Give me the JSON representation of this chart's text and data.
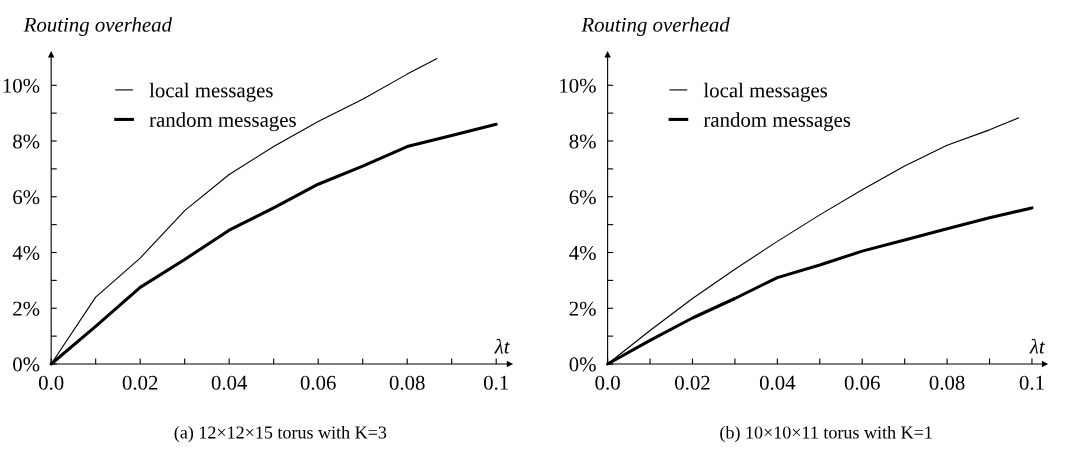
{
  "chart_data": [
    {
      "type": "line",
      "title": "(a) 12×12×15 torus with K=3",
      "ylabel": "Routing overhead",
      "xlabel": "λt",
      "legend": "top left",
      "grid": false,
      "xlim": [
        0,
        0.103
      ],
      "ylim": [
        0,
        11.1
      ],
      "xticks": [
        {
          "value": 0,
          "label": "0.0"
        },
        {
          "value": 0.01,
          "label": null
        },
        0.02,
        {
          "value": 0.03,
          "label": null
        },
        0.04,
        {
          "value": 0.05,
          "label": null
        },
        0.06,
        {
          "value": 0.07,
          "label": null
        },
        0.08,
        {
          "value": 0.09,
          "label": null
        },
        0.1
      ],
      "yticks": [
        {
          "value": 0,
          "label": "0%"
        },
        {
          "value": 1,
          "label": null
        },
        {
          "value": 2,
          "label": "2%"
        },
        {
          "value": 3,
          "label": null
        },
        {
          "value": 4,
          "label": "4%"
        },
        {
          "value": 5,
          "label": null
        },
        {
          "value": 6,
          "label": "6%"
        },
        {
          "value": 7,
          "label": null
        },
        {
          "value": 8,
          "label": "8%"
        },
        {
          "value": 9,
          "label": null
        },
        {
          "value": 10,
          "label": "10%"
        }
      ],
      "series": [
        {
          "name": "local messages",
          "color": "#000000",
          "x": [
            0,
            0.01,
            0.02,
            0.03,
            0.04,
            0.05,
            0.06,
            0.07,
            0.08,
            0.0867
          ],
          "values": [
            0,
            2.4,
            3.8,
            5.5,
            6.8,
            7.8,
            8.7,
            9.5,
            10.4,
            10.96
          ]
        },
        {
          "name": "random messages",
          "color": "#000000",
          "x": [
            0,
            0.01,
            0.02,
            0.03,
            0.04,
            0.05,
            0.06,
            0.07,
            0.08,
            0.09,
            0.1
          ],
          "values": [
            0,
            1.35,
            2.75,
            3.75,
            4.8,
            5.6,
            6.45,
            7.1,
            7.8,
            8.2,
            8.6
          ]
        }
      ]
    },
    {
      "type": "line",
      "title": "(b) 10×10×11 torus with K=1",
      "ylabel": "Routing overhead",
      "xlabel": "λt",
      "legend": "top left",
      "grid": false,
      "xlim": [
        0,
        0.103
      ],
      "ylim": [
        0,
        11.1
      ],
      "xticks": [
        {
          "value": 0,
          "label": "0.0"
        },
        {
          "value": 0.01,
          "label": null
        },
        0.02,
        {
          "value": 0.03,
          "label": null
        },
        0.04,
        {
          "value": 0.05,
          "label": null
        },
        0.06,
        {
          "value": 0.07,
          "label": null
        },
        0.08,
        {
          "value": 0.09,
          "label": null
        },
        0.1
      ],
      "yticks": [
        {
          "value": 0,
          "label": "0%"
        },
        {
          "value": 1,
          "label": null
        },
        {
          "value": 2,
          "label": "2%"
        },
        {
          "value": 3,
          "label": null
        },
        {
          "value": 4,
          "label": "4%"
        },
        {
          "value": 5,
          "label": null
        },
        {
          "value": 6,
          "label": "6%"
        },
        {
          "value": 7,
          "label": null
        },
        {
          "value": 8,
          "label": "8%"
        },
        {
          "value": 9,
          "label": null
        },
        {
          "value": 10,
          "label": "10%"
        }
      ],
      "series": [
        {
          "name": "local messages",
          "color": "#000000",
          "x": [
            0,
            0.01,
            0.02,
            0.03,
            0.04,
            0.05,
            0.06,
            0.07,
            0.08,
            0.09,
            0.0968
          ],
          "values": [
            0,
            1.2,
            2.35,
            3.4,
            4.4,
            5.35,
            6.25,
            7.1,
            7.85,
            8.4,
            8.83
          ]
        },
        {
          "name": "random messages",
          "color": "#000000",
          "x": [
            0,
            0.01,
            0.02,
            0.03,
            0.04,
            0.05,
            0.06,
            0.07,
            0.08,
            0.09,
            0.1
          ],
          "values": [
            0,
            0.85,
            1.65,
            2.35,
            3.1,
            3.55,
            4.05,
            4.45,
            4.85,
            5.25,
            5.6
          ]
        }
      ]
    }
  ]
}
